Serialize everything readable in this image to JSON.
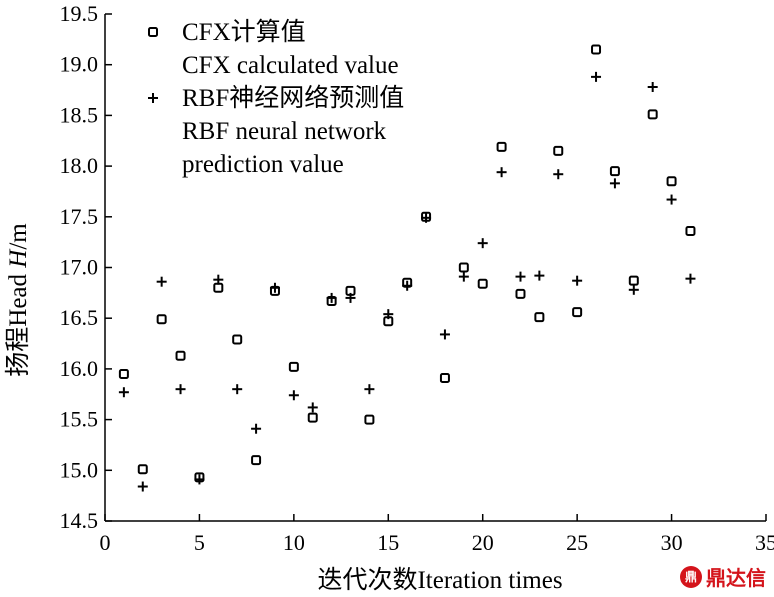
{
  "chart_data": {
    "type": "scatter",
    "xlabel": "迭代次数Iteration times",
    "ylabel_prefix": "扬程Head ",
    "ylabel_italic": "H",
    "ylabel_suffix": "/m",
    "xlim": [
      0,
      35
    ],
    "ylim": [
      14.5,
      19.5
    ],
    "xticks": [
      0,
      5,
      10,
      15,
      20,
      25,
      30,
      35
    ],
    "yticks": [
      "14.5",
      "15.0",
      "15.5",
      "16.0",
      "16.5",
      "17.0",
      "17.5",
      "18.0",
      "18.5",
      "19.0",
      "19.5"
    ],
    "grid": false,
    "legend_position": "top-left",
    "series": [
      {
        "name_lines": [
          "CFX计算值",
          "CFX calculated value"
        ],
        "marker": "square",
        "x": [
          1,
          2,
          3,
          4,
          5,
          6,
          7,
          8,
          9,
          10,
          11,
          12,
          13,
          14,
          15,
          16,
          17,
          18,
          19,
          20,
          21,
          22,
          23,
          24,
          25,
          26,
          27,
          28,
          29,
          30,
          31
        ],
        "y": [
          15.95,
          15.01,
          16.49,
          16.13,
          14.93,
          16.8,
          16.29,
          15.1,
          16.77,
          16.02,
          15.52,
          16.67,
          16.77,
          15.5,
          16.47,
          16.85,
          17.5,
          15.91,
          17.0,
          16.84,
          18.19,
          16.74,
          16.51,
          18.15,
          16.56,
          19.15,
          17.95,
          16.87,
          18.51,
          17.85,
          17.36
        ]
      },
      {
        "name_lines": [
          "RBF神经网络预测值",
          "RBF neural network",
          "prediction value"
        ],
        "marker": "plus",
        "x": [
          1,
          2,
          3,
          4,
          5,
          6,
          7,
          8,
          9,
          10,
          11,
          12,
          13,
          14,
          15,
          16,
          17,
          18,
          19,
          20,
          21,
          22,
          23,
          24,
          25,
          26,
          27,
          28,
          29,
          30,
          31
        ],
        "y": [
          15.77,
          14.84,
          16.86,
          15.8,
          14.91,
          16.88,
          15.8,
          15.41,
          16.8,
          15.74,
          15.62,
          16.7,
          16.7,
          15.8,
          16.54,
          16.82,
          17.49,
          16.34,
          16.91,
          17.24,
          17.94,
          16.91,
          16.92,
          17.92,
          16.87,
          18.88,
          17.83,
          16.78,
          18.78,
          17.67,
          16.89
        ]
      }
    ]
  },
  "watermark": {
    "icon_text": "鼎",
    "text": "鼎达信",
    "color": "#d4141b"
  }
}
